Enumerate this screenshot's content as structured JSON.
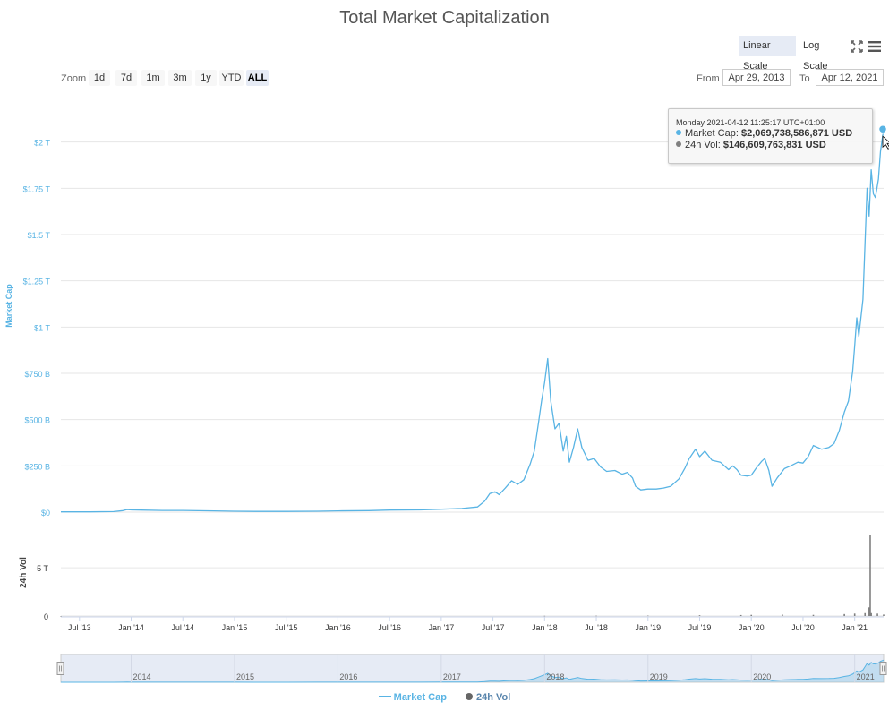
{
  "colors": {
    "market_cap": "#59b4e4",
    "volume": "#808080",
    "axis_text": "#666666",
    "grid": "#e6e6e6",
    "navigator_fill": "#e6ebf5",
    "navigator_mask": "rgba(102,133,194,0.3)"
  },
  "header": {
    "title": "Total Market Capitalization",
    "scale_buttons": {
      "linear": "Linear Scale",
      "log": "Log Scale",
      "active": "linear"
    }
  },
  "zoom": {
    "label": "Zoom",
    "buttons": [
      "1d",
      "7d",
      "1m",
      "3m",
      "1y",
      "YTD",
      "ALL"
    ],
    "active": "ALL"
  },
  "range": {
    "from_label": "From",
    "from_value": "Apr 29, 2013",
    "to_label": "To",
    "to_value": "Apr 12, 2021"
  },
  "tooltip": {
    "header": "Monday 2021-04-12 11:25:17 UTC+01:00",
    "rows": [
      {
        "label": "Market Cap:",
        "value": "$2,069,738,586,871 USD"
      },
      {
        "label": "24h Vol:",
        "value": "$146,609,763,831 USD"
      }
    ]
  },
  "legend": {
    "market_cap": "Market Cap",
    "volume": "24h Vol"
  },
  "chart_data": {
    "type": "line",
    "title": "Total Market Capitalization",
    "x_range": [
      2013.32,
      2021.28
    ],
    "main_axis": {
      "label": "Market Cap",
      "ticks": [
        0,
        250,
        500,
        750,
        1000,
        1250,
        1500,
        1750,
        2000
      ],
      "tick_labels": [
        "$0",
        "$250 B",
        "$500 B",
        "$750 B",
        "$1 T",
        "$1.25 T",
        "$1.5 T",
        "$1.75 T",
        "$2 T"
      ],
      "ylim": [
        0,
        2250
      ],
      "unit": "billion USD"
    },
    "volume_axis": {
      "label": "24h Vol",
      "ticks": [
        0,
        5
      ],
      "tick_labels": [
        "0",
        "5 T"
      ],
      "ylim": [
        0,
        9
      ],
      "unit": "trillion USD"
    },
    "x_ticks": [
      {
        "x": 2013.5,
        "label": "Jul '13"
      },
      {
        "x": 2014.0,
        "label": "Jan '14"
      },
      {
        "x": 2014.5,
        "label": "Jul '14"
      },
      {
        "x": 2015.0,
        "label": "Jan '15"
      },
      {
        "x": 2015.5,
        "label": "Jul '15"
      },
      {
        "x": 2016.0,
        "label": "Jan '16"
      },
      {
        "x": 2016.5,
        "label": "Jul '16"
      },
      {
        "x": 2017.0,
        "label": "Jan '17"
      },
      {
        "x": 2017.5,
        "label": "Jul '17"
      },
      {
        "x": 2018.0,
        "label": "Jan '18"
      },
      {
        "x": 2018.5,
        "label": "Jul '18"
      },
      {
        "x": 2019.0,
        "label": "Jan '19"
      },
      {
        "x": 2019.5,
        "label": "Jul '19"
      },
      {
        "x": 2020.0,
        "label": "Jan '20"
      },
      {
        "x": 2020.5,
        "label": "Jul '20"
      },
      {
        "x": 2021.0,
        "label": "Jan '21"
      }
    ],
    "navigator_years": [
      {
        "x": 2014.0,
        "label": "2014"
      },
      {
        "x": 2015.0,
        "label": "2015"
      },
      {
        "x": 2016.0,
        "label": "2016"
      },
      {
        "x": 2017.0,
        "label": "2017"
      },
      {
        "x": 2018.0,
        "label": "2018"
      },
      {
        "x": 2019.0,
        "label": "2019"
      },
      {
        "x": 2020.0,
        "label": "2020"
      },
      {
        "x": 2021.0,
        "label": "2021"
      }
    ],
    "series": [
      {
        "name": "Market Cap",
        "unit": "billion USD",
        "points": [
          [
            2013.32,
            1.5
          ],
          [
            2013.6,
            1.6
          ],
          [
            2013.83,
            3
          ],
          [
            2013.92,
            8
          ],
          [
            2013.96,
            14
          ],
          [
            2014.0,
            12
          ],
          [
            2014.1,
            11
          ],
          [
            2014.3,
            9
          ],
          [
            2014.5,
            9
          ],
          [
            2014.8,
            7
          ],
          [
            2015.0,
            5
          ],
          [
            2015.2,
            4
          ],
          [
            2015.5,
            4
          ],
          [
            2015.8,
            5
          ],
          [
            2016.0,
            7
          ],
          [
            2016.3,
            8
          ],
          [
            2016.5,
            11
          ],
          [
            2016.8,
            12
          ],
          [
            2017.0,
            16
          ],
          [
            2017.2,
            20
          ],
          [
            2017.35,
            28
          ],
          [
            2017.42,
            60
          ],
          [
            2017.47,
            100
          ],
          [
            2017.52,
            110
          ],
          [
            2017.56,
            95
          ],
          [
            2017.62,
            130
          ],
          [
            2017.68,
            170
          ],
          [
            2017.74,
            150
          ],
          [
            2017.8,
            175
          ],
          [
            2017.86,
            260
          ],
          [
            2017.9,
            330
          ],
          [
            2017.94,
            480
          ],
          [
            2017.97,
            600
          ],
          [
            2018.0,
            700
          ],
          [
            2018.03,
            830
          ],
          [
            2018.06,
            600
          ],
          [
            2018.1,
            450
          ],
          [
            2018.14,
            480
          ],
          [
            2018.18,
            330
          ],
          [
            2018.21,
            410
          ],
          [
            2018.24,
            270
          ],
          [
            2018.28,
            350
          ],
          [
            2018.32,
            450
          ],
          [
            2018.36,
            350
          ],
          [
            2018.42,
            280
          ],
          [
            2018.48,
            290
          ],
          [
            2018.54,
            245
          ],
          [
            2018.6,
            220
          ],
          [
            2018.68,
            225
          ],
          [
            2018.75,
            205
          ],
          [
            2018.8,
            215
          ],
          [
            2018.85,
            185
          ],
          [
            2018.88,
            140
          ],
          [
            2018.93,
            120
          ],
          [
            2019.0,
            125
          ],
          [
            2019.08,
            125
          ],
          [
            2019.15,
            130
          ],
          [
            2019.22,
            140
          ],
          [
            2019.3,
            180
          ],
          [
            2019.36,
            240
          ],
          [
            2019.4,
            290
          ],
          [
            2019.46,
            340
          ],
          [
            2019.5,
            300
          ],
          [
            2019.55,
            330
          ],
          [
            2019.62,
            280
          ],
          [
            2019.7,
            270
          ],
          [
            2019.78,
            230
          ],
          [
            2019.82,
            250
          ],
          [
            2019.86,
            230
          ],
          [
            2019.9,
            200
          ],
          [
            2019.96,
            195
          ],
          [
            2020.0,
            200
          ],
          [
            2020.05,
            240
          ],
          [
            2020.1,
            275
          ],
          [
            2020.13,
            290
          ],
          [
            2020.17,
            225
          ],
          [
            2020.2,
            140
          ],
          [
            2020.25,
            185
          ],
          [
            2020.32,
            235
          ],
          [
            2020.38,
            250
          ],
          [
            2020.45,
            270
          ],
          [
            2020.5,
            265
          ],
          [
            2020.55,
            300
          ],
          [
            2020.6,
            360
          ],
          [
            2020.68,
            340
          ],
          [
            2020.75,
            350
          ],
          [
            2020.8,
            370
          ],
          [
            2020.85,
            440
          ],
          [
            2020.9,
            540
          ],
          [
            2020.94,
            600
          ],
          [
            2020.98,
            760
          ],
          [
            2021.0,
            900
          ],
          [
            2021.02,
            1050
          ],
          [
            2021.04,
            950
          ],
          [
            2021.06,
            1050
          ],
          [
            2021.08,
            1150
          ],
          [
            2021.1,
            1450
          ],
          [
            2021.12,
            1750
          ],
          [
            2021.14,
            1600
          ],
          [
            2021.16,
            1850
          ],
          [
            2021.18,
            1720
          ],
          [
            2021.2,
            1700
          ],
          [
            2021.23,
            1800
          ],
          [
            2021.25,
            1950
          ],
          [
            2021.28,
            2069.7
          ]
        ]
      },
      {
        "name": "24h Vol",
        "unit": "trillion USD",
        "points": [
          [
            2013.32,
            0.0
          ],
          [
            2018.0,
            0.02
          ],
          [
            2018.5,
            0.03
          ],
          [
            2019.0,
            0.04
          ],
          [
            2019.5,
            0.08
          ],
          [
            2019.9,
            0.1
          ],
          [
            2020.0,
            0.12
          ],
          [
            2020.3,
            0.15
          ],
          [
            2020.6,
            0.12
          ],
          [
            2020.9,
            0.2
          ],
          [
            2021.0,
            0.25
          ],
          [
            2021.1,
            0.3
          ],
          [
            2021.14,
            0.9
          ],
          [
            2021.15,
            8.4
          ],
          [
            2021.16,
            0.3
          ],
          [
            2021.22,
            0.25
          ],
          [
            2021.28,
            0.15
          ]
        ]
      }
    ]
  }
}
